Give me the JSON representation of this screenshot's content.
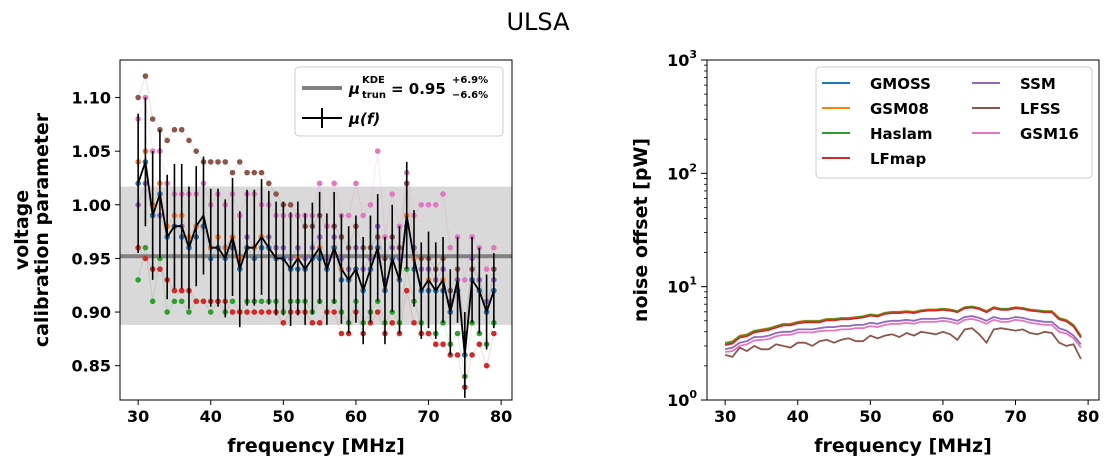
{
  "figure": {
    "suptitle": "ULSA"
  },
  "chart_data": [
    {
      "type": "scatter",
      "xlabel": "frequency [MHz]",
      "ylabel_line1": "voltage",
      "ylabel_line2": "calibration parameter",
      "xlim": [
        27.5,
        81.5
      ],
      "ylim": [
        0.818,
        1.135
      ],
      "xticks": [
        30,
        40,
        50,
        60,
        70,
        80
      ],
      "yticks": [
        0.85,
        0.9,
        0.95,
        1.0,
        1.05,
        1.1
      ],
      "ytick_labels": [
        "0.85",
        "0.90",
        "0.95",
        "1.00",
        "1.05",
        "1.10"
      ],
      "grid": false,
      "legend_position": "upper right",
      "kde_band": {
        "center": 0.952,
        "low": 0.888,
        "high": 1.017,
        "color": "#808080"
      },
      "legend_kde": {
        "mu_symbol": "μ",
        "mu_sub": "trun",
        "mu_sup": "KDE",
        "eq_value": "= 0.95",
        "upper": "+6.9%",
        "lower": "−6.6%"
      },
      "legend_mean": {
        "label_mu": "μ",
        "label_arg": "(f)"
      },
      "x": [
        30,
        31,
        32,
        33,
        34,
        35,
        36,
        37,
        38,
        39,
        40,
        41,
        42,
        43,
        44,
        45,
        46,
        47,
        48,
        49,
        50,
        51,
        52,
        53,
        54,
        55,
        56,
        57,
        58,
        59,
        60,
        61,
        62,
        63,
        64,
        65,
        66,
        67,
        68,
        69,
        70,
        71,
        72,
        73,
        74,
        75,
        76,
        77,
        78,
        79
      ],
      "mean": [
        1.02,
        1.04,
        0.99,
        1.01,
        0.97,
        0.98,
        0.98,
        0.96,
        0.98,
        0.99,
        0.96,
        0.96,
        0.95,
        0.97,
        0.94,
        0.96,
        0.96,
        0.97,
        0.96,
        0.95,
        0.95,
        0.94,
        0.95,
        0.94,
        0.95,
        0.96,
        0.94,
        0.96,
        0.94,
        0.93,
        0.94,
        0.92,
        0.94,
        0.96,
        0.92,
        0.95,
        0.93,
        0.99,
        0.95,
        0.92,
        0.93,
        0.92,
        0.93,
        0.9,
        0.93,
        0.86,
        0.93,
        0.92,
        0.9,
        0.92
      ],
      "err": [
        0.065,
        0.06,
        0.06,
        0.06,
        0.058,
        0.058,
        0.058,
        0.057,
        0.056,
        0.055,
        0.055,
        0.055,
        0.055,
        0.055,
        0.054,
        0.054,
        0.054,
        0.054,
        0.053,
        0.053,
        0.053,
        0.053,
        0.053,
        0.052,
        0.052,
        0.052,
        0.052,
        0.052,
        0.051,
        0.05,
        0.05,
        0.05,
        0.05,
        0.05,
        0.05,
        0.05,
        0.05,
        0.05,
        0.045,
        0.045,
        0.045,
        0.045,
        0.04,
        0.04,
        0.04,
        0.04,
        0.04,
        0.04,
        0.035,
        0.035
      ],
      "series": [
        {
          "color": "#8c564b",
          "values": [
            1.1,
            1.12,
            1.08,
            1.07,
            1.06,
            1.07,
            1.07,
            1.06,
            1.05,
            1.04,
            1.04,
            1.04,
            1.04,
            1.03,
            1.04,
            1.03,
            1.03,
            1.03,
            1.02,
            1.01,
            1.0,
            1.0,
            0.99,
            0.98,
            0.98,
            0.99,
            0.98,
            0.98,
            0.97,
            0.96,
            0.98,
            0.96,
            0.96,
            0.97,
            0.95,
            0.97,
            0.96,
            1.02,
            0.96,
            0.95,
            0.95,
            0.94,
            0.95,
            0.92,
            0.94,
            0.88,
            0.94,
            0.93,
            0.9,
            0.94
          ]
        },
        {
          "color": "#e377c2",
          "values": [
            1.08,
            1.1,
            1.05,
            1.05,
            1.02,
            1.01,
            1.01,
            1.01,
            1.01,
            1.02,
            1.0,
            1.01,
            1.0,
            1.01,
            0.99,
            1.01,
            1.01,
            1.0,
            1.0,
            0.99,
            0.99,
            0.99,
            0.99,
            0.99,
            0.99,
            1.02,
            0.98,
            1.02,
            0.99,
            0.99,
            1.02,
            0.99,
            1.0,
            1.05,
            0.97,
            1.01,
            0.98,
            1.03,
            0.99,
            1.0,
            1.0,
            1.0,
            1.01,
            0.96,
            0.97,
            0.93,
            0.97,
            0.96,
            0.94,
            0.96
          ]
        },
        {
          "color": "#9467bd",
          "values": [
            1.0,
            1.02,
            0.99,
            0.99,
            0.97,
            0.98,
            0.98,
            0.96,
            0.98,
            0.98,
            0.96,
            0.96,
            0.96,
            0.97,
            0.95,
            0.97,
            0.96,
            0.97,
            0.97,
            0.96,
            0.96,
            0.95,
            0.96,
            0.95,
            0.96,
            0.97,
            0.95,
            0.97,
            0.95,
            0.94,
            0.96,
            0.94,
            0.95,
            0.98,
            0.93,
            0.96,
            0.95,
            0.99,
            0.96,
            0.94,
            0.94,
            0.93,
            0.94,
            0.91,
            0.93,
            0.88,
            0.95,
            0.93,
            0.91,
            0.93
          ]
        },
        {
          "color": "#ff7f0e",
          "values": [
            1.04,
            1.05,
            1.0,
            1.02,
            0.98,
            0.99,
            0.99,
            0.97,
            0.98,
            0.98,
            0.96,
            0.97,
            0.96,
            0.97,
            0.95,
            0.96,
            0.96,
            0.97,
            0.96,
            0.95,
            0.95,
            0.94,
            0.95,
            0.94,
            0.95,
            0.96,
            0.94,
            0.96,
            0.94,
            0.93,
            0.94,
            0.92,
            0.94,
            0.96,
            0.92,
            0.95,
            0.93,
            0.99,
            0.95,
            0.92,
            0.93,
            0.92,
            0.93,
            0.9,
            0.92,
            0.86,
            0.93,
            0.92,
            0.9,
            0.92
          ]
        },
        {
          "color": "#1f77b4",
          "values": [
            1.02,
            1.04,
            0.99,
            1.01,
            0.97,
            0.98,
            0.97,
            0.96,
            0.97,
            0.98,
            0.95,
            0.96,
            0.95,
            0.96,
            0.94,
            0.96,
            0.95,
            0.96,
            0.96,
            0.95,
            0.95,
            0.94,
            0.94,
            0.94,
            0.95,
            0.95,
            0.94,
            0.96,
            0.93,
            0.93,
            0.94,
            0.92,
            0.94,
            0.96,
            0.92,
            0.95,
            0.93,
            0.98,
            0.94,
            0.92,
            0.92,
            0.92,
            0.92,
            0.9,
            0.92,
            0.86,
            0.93,
            0.92,
            0.9,
            0.92
          ]
        },
        {
          "color": "#2ca02c",
          "values": [
            0.93,
            0.96,
            0.91,
            0.95,
            0.9,
            0.91,
            0.91,
            0.9,
            0.91,
            0.91,
            0.9,
            0.91,
            0.9,
            0.91,
            0.9,
            0.91,
            0.91,
            0.91,
            0.91,
            0.91,
            0.9,
            0.91,
            0.91,
            0.91,
            0.9,
            0.91,
            0.9,
            0.91,
            0.9,
            0.89,
            0.91,
            0.89,
            0.9,
            0.91,
            0.89,
            0.9,
            0.89,
            0.94,
            0.91,
            0.89,
            0.88,
            0.88,
            0.89,
            0.87,
            0.88,
            0.84,
            0.89,
            0.88,
            0.87,
            0.89
          ]
        },
        {
          "color": "#d62728",
          "values": [
            0.96,
            0.95,
            0.94,
            0.94,
            0.93,
            0.92,
            0.92,
            0.92,
            0.91,
            0.91,
            0.91,
            0.91,
            0.91,
            0.9,
            0.9,
            0.9,
            0.9,
            0.9,
            0.9,
            0.9,
            0.89,
            0.9,
            0.9,
            0.9,
            0.89,
            0.89,
            0.9,
            0.9,
            0.88,
            0.88,
            0.9,
            0.88,
            0.89,
            0.9,
            0.88,
            0.89,
            0.88,
            0.92,
            0.89,
            0.88,
            0.88,
            0.87,
            0.87,
            0.86,
            0.86,
            0.83,
            0.86,
            0.87,
            0.85,
            0.88
          ]
        }
      ]
    },
    {
      "type": "line",
      "xlabel": "frequency [MHz]",
      "ylabel": "noise offset [pW]",
      "log_y": true,
      "xlim": [
        27.5,
        81.5
      ],
      "ylim": [
        1,
        1000
      ],
      "xticks": [
        30,
        40,
        50,
        60,
        70,
        80
      ],
      "ytick_labels": [
        {
          "base": "10",
          "exp": "0"
        },
        {
          "base": "10",
          "exp": "1"
        },
        {
          "base": "10",
          "exp": "2"
        },
        {
          "base": "10",
          "exp": "3"
        }
      ],
      "grid": false,
      "legend_position": "upper right",
      "x": [
        30,
        31,
        32,
        33,
        34,
        35,
        36,
        37,
        38,
        39,
        40,
        41,
        42,
        43,
        44,
        45,
        46,
        47,
        48,
        49,
        50,
        51,
        52,
        53,
        54,
        55,
        56,
        57,
        58,
        59,
        60,
        61,
        62,
        63,
        64,
        65,
        66,
        67,
        68,
        69,
        70,
        71,
        72,
        73,
        74,
        75,
        76,
        77,
        78,
        79
      ],
      "series": [
        {
          "name": "GMOSS",
          "color": "#1f77b4",
          "values": [
            3.1,
            3.2,
            3.6,
            3.7,
            4.0,
            4.1,
            4.2,
            4.4,
            4.6,
            4.6,
            4.8,
            4.9,
            4.9,
            4.9,
            5.1,
            5.1,
            5.2,
            5.2,
            5.3,
            5.4,
            5.6,
            5.5,
            5.8,
            5.9,
            5.9,
            6.0,
            5.9,
            6.1,
            6.2,
            6.2,
            6.3,
            6.2,
            6.0,
            6.5,
            6.6,
            6.4,
            6.0,
            6.5,
            6.3,
            6.3,
            6.5,
            6.4,
            6.2,
            6.1,
            6.0,
            6.0,
            5.2,
            5.0,
            4.5,
            3.6
          ]
        },
        {
          "name": "GSM08",
          "color": "#ff7f0e",
          "values": [
            3.2,
            3.3,
            3.7,
            3.8,
            4.1,
            4.2,
            4.3,
            4.5,
            4.7,
            4.7,
            4.9,
            5.0,
            5.0,
            5.0,
            5.2,
            5.2,
            5.3,
            5.3,
            5.4,
            5.5,
            5.7,
            5.6,
            5.9,
            6.0,
            6.0,
            6.1,
            6.0,
            6.2,
            6.3,
            6.3,
            6.4,
            6.3,
            6.1,
            6.6,
            6.7,
            6.5,
            6.1,
            6.6,
            6.4,
            6.4,
            6.6,
            6.5,
            6.3,
            6.2,
            6.1,
            6.1,
            5.3,
            5.1,
            4.6,
            3.7
          ]
        },
        {
          "name": "Haslam",
          "color": "#2ca02c",
          "values": [
            3.15,
            3.25,
            3.65,
            3.75,
            4.05,
            4.15,
            4.25,
            4.45,
            4.65,
            4.65,
            4.85,
            4.95,
            4.95,
            4.95,
            5.15,
            5.15,
            5.25,
            5.25,
            5.35,
            5.45,
            5.65,
            5.55,
            5.85,
            5.95,
            5.95,
            6.05,
            5.95,
            6.15,
            6.25,
            6.25,
            6.35,
            6.25,
            6.05,
            6.55,
            6.65,
            6.45,
            6.05,
            6.55,
            6.35,
            6.35,
            6.55,
            6.45,
            6.25,
            6.15,
            6.05,
            6.05,
            5.25,
            5.05,
            4.55,
            3.65
          ]
        },
        {
          "name": "LFmap",
          "color": "#d62728",
          "values": [
            3.05,
            3.15,
            3.55,
            3.65,
            3.95,
            4.05,
            4.15,
            4.35,
            4.55,
            4.55,
            4.75,
            4.85,
            4.85,
            4.85,
            5.05,
            5.05,
            5.15,
            5.15,
            5.25,
            5.35,
            5.55,
            5.45,
            5.75,
            5.85,
            5.85,
            5.95,
            5.85,
            6.05,
            6.15,
            6.15,
            6.25,
            6.15,
            5.95,
            6.45,
            6.55,
            6.35,
            5.95,
            6.45,
            6.25,
            6.25,
            6.45,
            6.35,
            6.15,
            6.05,
            5.95,
            5.95,
            5.15,
            4.95,
            4.45,
            3.55
          ]
        },
        {
          "name": "SSM",
          "color": "#9467bd",
          "values": [
            2.8,
            2.9,
            3.2,
            3.3,
            3.6,
            3.6,
            3.7,
            3.9,
            4.0,
            4.0,
            4.2,
            4.2,
            4.2,
            4.3,
            4.4,
            4.4,
            4.5,
            4.5,
            4.6,
            4.6,
            4.8,
            4.7,
            4.9,
            5.0,
            5.0,
            5.1,
            5.0,
            5.2,
            5.2,
            5.2,
            5.3,
            5.2,
            5.0,
            5.4,
            5.5,
            5.3,
            5.0,
            5.4,
            5.2,
            5.2,
            5.4,
            5.3,
            5.1,
            5.0,
            4.9,
            4.9,
            4.3,
            4.1,
            3.7,
            3.1
          ]
        },
        {
          "name": "LFSS",
          "color": "#8c564b",
          "values": [
            2.5,
            2.4,
            2.9,
            2.7,
            3.0,
            2.8,
            2.8,
            3.1,
            3.0,
            2.9,
            3.2,
            3.2,
            3.0,
            3.3,
            3.4,
            3.2,
            3.4,
            3.5,
            3.3,
            3.3,
            3.7,
            3.5,
            3.7,
            3.8,
            3.6,
            3.9,
            3.7,
            4.0,
            3.9,
            3.8,
            4.0,
            3.8,
            3.4,
            4.2,
            4.3,
            3.8,
            3.2,
            4.2,
            4.3,
            4.2,
            4.1,
            4.2,
            3.9,
            3.8,
            4.0,
            3.9,
            3.2,
            3.0,
            3.1,
            2.3
          ]
        },
        {
          "name": "GSM16",
          "color": "#e377c2",
          "values": [
            2.65,
            2.7,
            3.0,
            3.1,
            3.35,
            3.4,
            3.45,
            3.65,
            3.75,
            3.75,
            3.95,
            3.95,
            3.95,
            4.05,
            4.1,
            4.1,
            4.2,
            4.2,
            4.3,
            4.3,
            4.5,
            4.4,
            4.6,
            4.7,
            4.7,
            4.8,
            4.7,
            4.9,
            4.9,
            4.9,
            5.0,
            4.9,
            4.7,
            5.1,
            5.2,
            5.0,
            4.7,
            5.1,
            4.9,
            4.9,
            5.1,
            5.0,
            4.8,
            4.7,
            4.6,
            4.6,
            4.0,
            3.85,
            3.5,
            2.9
          ]
        }
      ]
    }
  ]
}
